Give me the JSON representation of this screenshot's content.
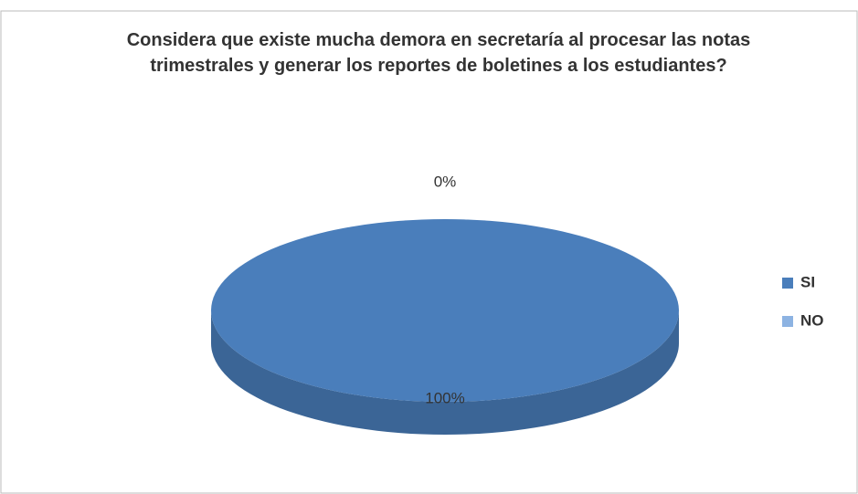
{
  "chart_data": {
    "type": "pie3d",
    "title": "Considera que existe mucha demora en secretaría al procesar las notas trimestrales y generar los reportes de boletines a los estudiantes?",
    "categories": [
      "SI",
      "NO"
    ],
    "values": [
      100,
      0
    ],
    "value_labels": [
      "100%",
      "0%"
    ],
    "colors": [
      "#4a7ebb",
      "#8db3e2"
    ],
    "legend": "right"
  }
}
